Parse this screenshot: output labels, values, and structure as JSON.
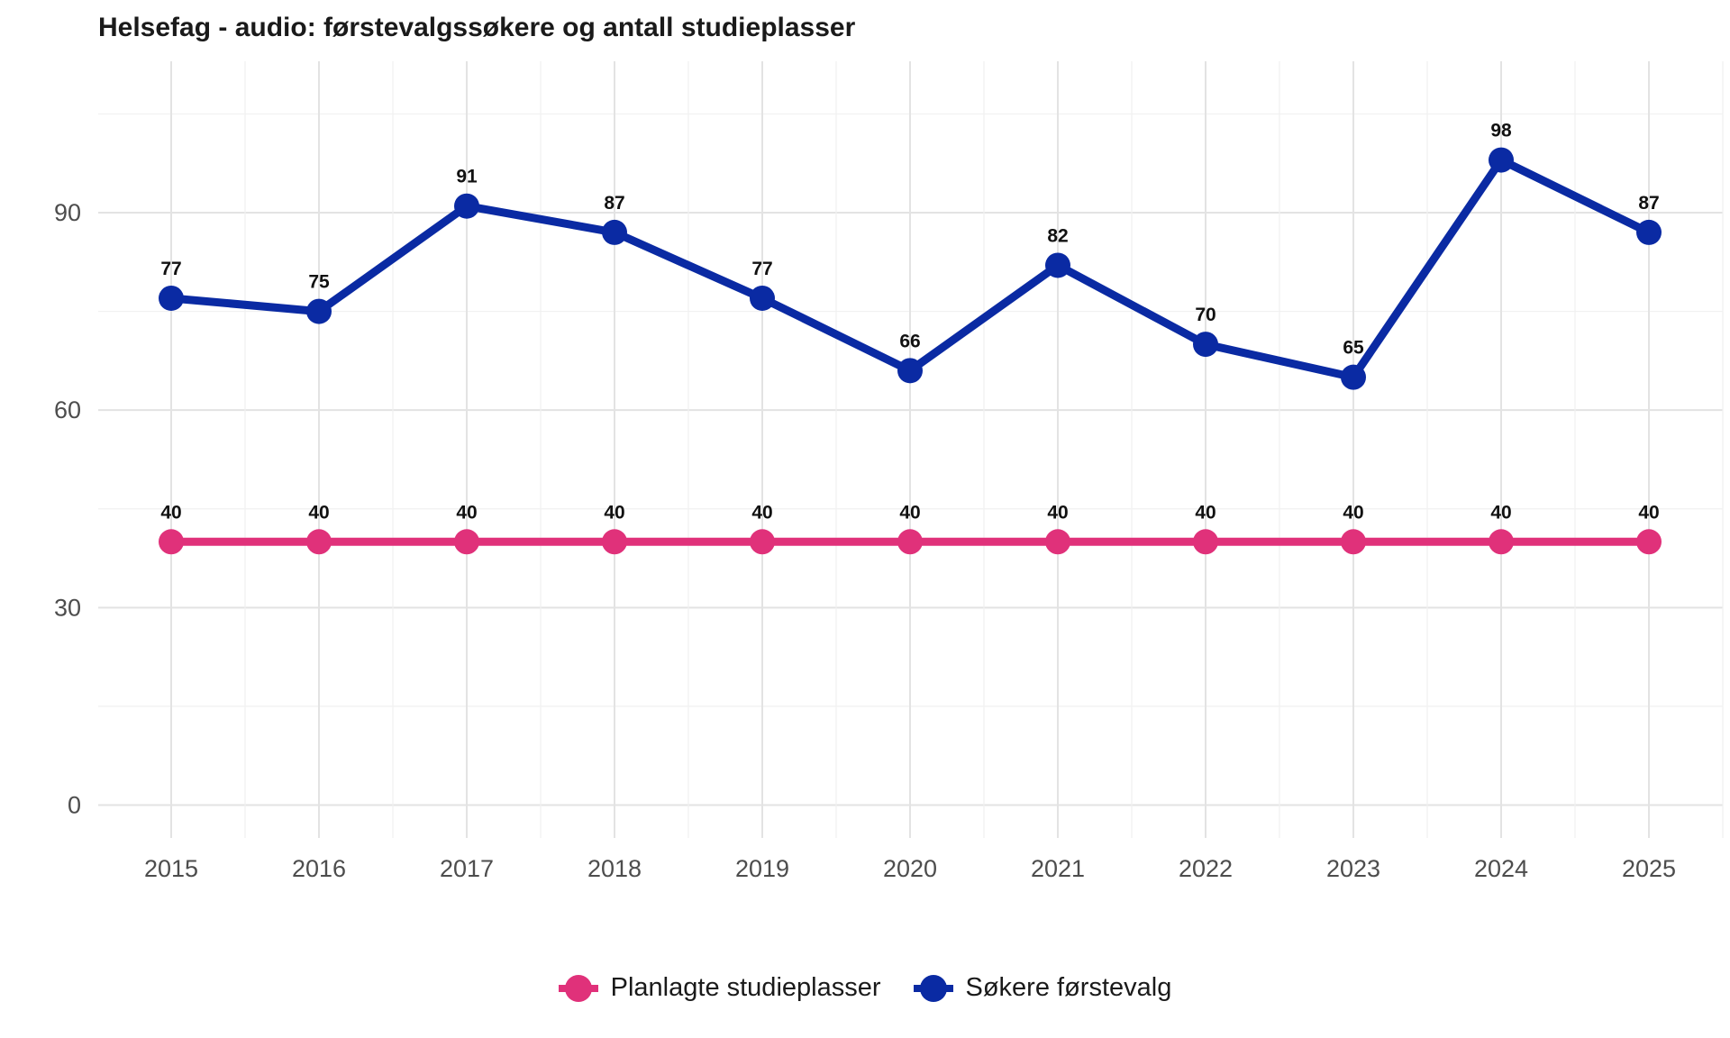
{
  "chart_data": {
    "type": "line",
    "title": "Helsefag - audio: førstevalgssøkere og antall studieplasser",
    "xlabel": "",
    "ylabel": "",
    "x": [
      "2015",
      "2016",
      "2017",
      "2018",
      "2019",
      "2020",
      "2021",
      "2022",
      "2023",
      "2024",
      "2025"
    ],
    "yticks": [
      "0",
      "30",
      "60",
      "90"
    ],
    "ylim": [
      -5,
      113
    ],
    "grid": true,
    "legend_position": "bottom",
    "series": [
      {
        "name": "Planlagte studieplasser",
        "color": "#e0317a",
        "values": [
          40,
          40,
          40,
          40,
          40,
          40,
          40,
          40,
          40,
          40,
          40
        ]
      },
      {
        "name": "Søkere førstevalg",
        "color": "#0a2aa3",
        "values": [
          77,
          75,
          91,
          87,
          77,
          66,
          82,
          70,
          65,
          98,
          87
        ]
      }
    ]
  }
}
